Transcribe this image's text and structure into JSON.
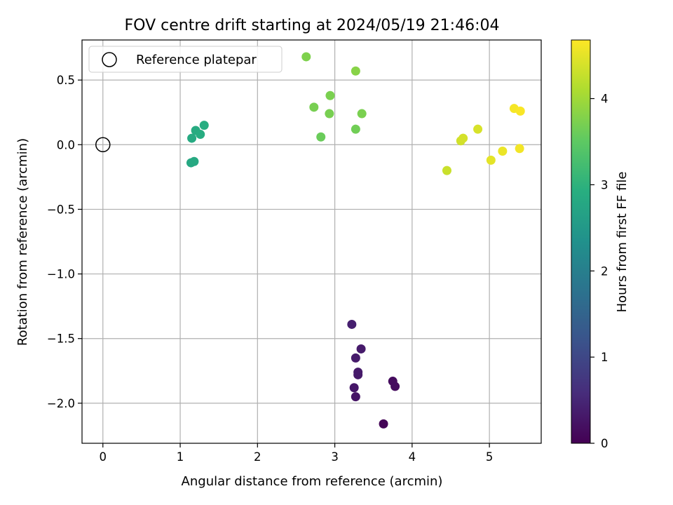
{
  "chart_data": {
    "type": "scatter",
    "title": "FOV centre drift starting at 2024/05/19 21:46:04",
    "xlabel": "Angular distance from reference (arcmin)",
    "ylabel": "Rotation from reference (arcmin)",
    "xlim": [
      -0.27,
      5.67
    ],
    "ylim": [
      -2.31,
      0.81
    ],
    "xticks": [
      0,
      1,
      2,
      3,
      4,
      5
    ],
    "yticks": [
      -2.0,
      -1.5,
      -1.0,
      -0.5,
      0.0,
      0.5
    ],
    "xtick_labels": [
      "0",
      "1",
      "2",
      "3",
      "4",
      "5"
    ],
    "ytick_labels": [
      "−2.0",
      "−1.5",
      "−1.0",
      "−0.5",
      "0.0",
      "0.5"
    ],
    "grid": true,
    "legend": {
      "placement": "top-left",
      "entries": [
        "Reference platepar"
      ]
    },
    "reference_point": {
      "label": "Reference platepar",
      "x": 0.0,
      "y": 0.0
    },
    "colorbar": {
      "label": "Hours from first FF file",
      "range": [
        0,
        4.68
      ],
      "ticks": [
        0,
        1,
        2,
        3,
        4
      ],
      "tick_labels": [
        "0",
        "1",
        "2",
        "3",
        "4"
      ],
      "colormap": "viridis"
    },
    "points": [
      {
        "x": 3.63,
        "y": -2.16,
        "c": 0.05
      },
      {
        "x": 3.78,
        "y": -1.87,
        "c": 0.15
      },
      {
        "x": 3.75,
        "y": -1.83,
        "c": 0.15
      },
      {
        "x": 3.27,
        "y": -1.95,
        "c": 0.25
      },
      {
        "x": 3.25,
        "y": -1.88,
        "c": 0.28
      },
      {
        "x": 3.3,
        "y": -1.78,
        "c": 0.32
      },
      {
        "x": 3.3,
        "y": -1.76,
        "c": 0.33
      },
      {
        "x": 3.27,
        "y": -1.65,
        "c": 0.35
      },
      {
        "x": 3.34,
        "y": -1.58,
        "c": 0.35
      },
      {
        "x": 3.22,
        "y": -1.39,
        "c": 0.4
      },
      {
        "x": 1.14,
        "y": -0.14,
        "c": 2.8
      },
      {
        "x": 1.18,
        "y": -0.13,
        "c": 2.82
      },
      {
        "x": 1.15,
        "y": 0.05,
        "c": 2.85
      },
      {
        "x": 1.2,
        "y": 0.11,
        "c": 2.87
      },
      {
        "x": 1.26,
        "y": 0.08,
        "c": 2.88
      },
      {
        "x": 1.31,
        "y": 0.15,
        "c": 2.9
      },
      {
        "x": 2.82,
        "y": 0.06,
        "c": 3.6
      },
      {
        "x": 3.27,
        "y": 0.12,
        "c": 3.65
      },
      {
        "x": 2.73,
        "y": 0.29,
        "c": 3.7
      },
      {
        "x": 2.93,
        "y": 0.24,
        "c": 3.7
      },
      {
        "x": 2.94,
        "y": 0.38,
        "c": 3.72
      },
      {
        "x": 3.35,
        "y": 0.24,
        "c": 3.72
      },
      {
        "x": 2.63,
        "y": 0.68,
        "c": 3.75
      },
      {
        "x": 3.27,
        "y": 0.57,
        "c": 3.82
      },
      {
        "x": 4.45,
        "y": -0.2,
        "c": 4.3
      },
      {
        "x": 4.63,
        "y": 0.03,
        "c": 4.35
      },
      {
        "x": 4.66,
        "y": 0.05,
        "c": 4.38
      },
      {
        "x": 4.85,
        "y": 0.12,
        "c": 4.4
      },
      {
        "x": 5.02,
        "y": -0.12,
        "c": 4.5
      },
      {
        "x": 5.17,
        "y": -0.05,
        "c": 4.55
      },
      {
        "x": 5.39,
        "y": -0.03,
        "c": 4.6
      },
      {
        "x": 5.32,
        "y": 0.28,
        "c": 4.62
      },
      {
        "x": 5.4,
        "y": 0.26,
        "c": 4.65
      }
    ]
  }
}
